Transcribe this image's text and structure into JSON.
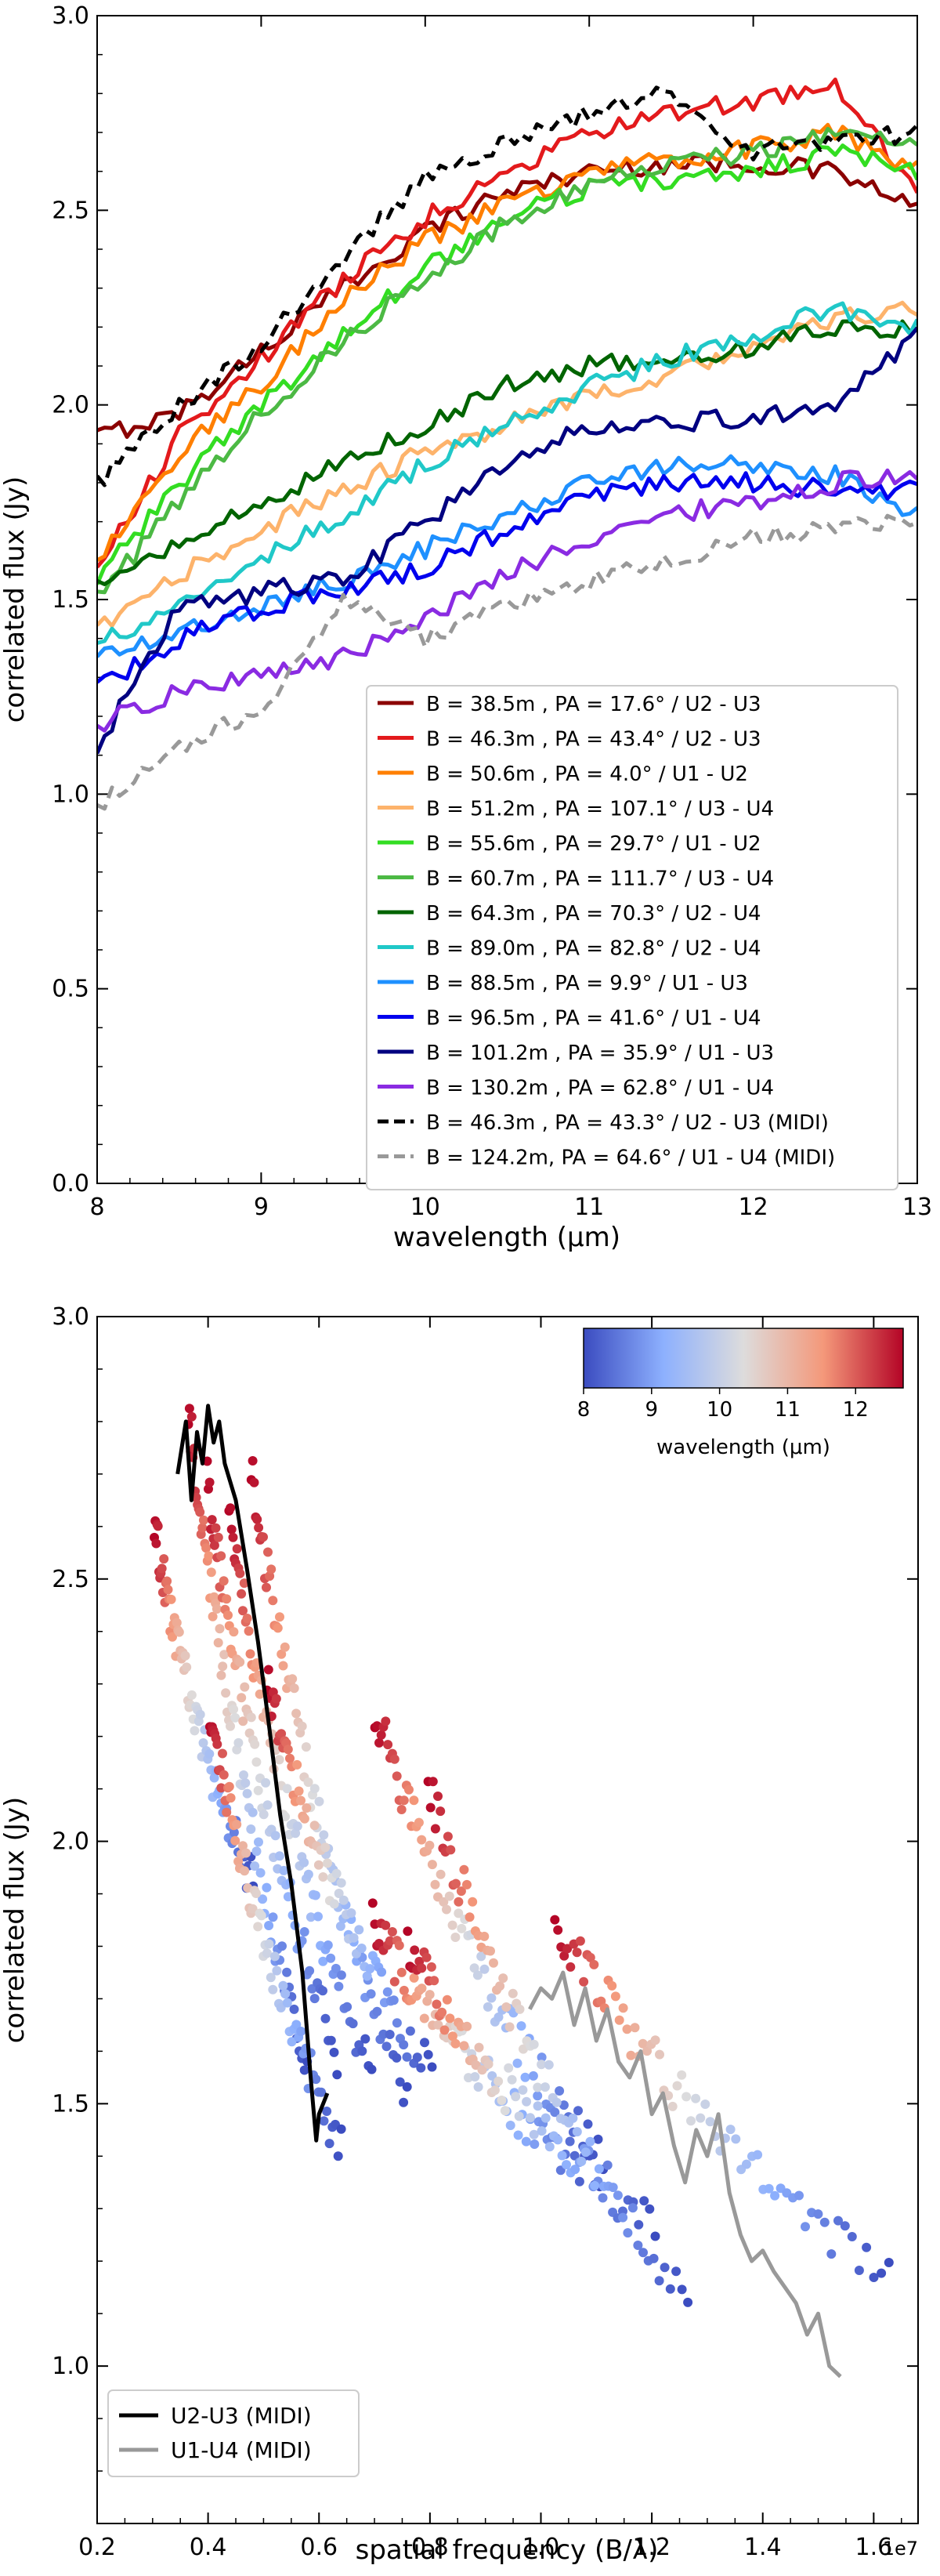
{
  "chart_data": [
    {
      "type": "line",
      "xlabel": "wavelength (μm)",
      "ylabel": "correlated flux (Jy)",
      "xlim": [
        8,
        13
      ],
      "ylim": [
        0,
        3
      ],
      "xticks": [
        8,
        9,
        10,
        11,
        12,
        13
      ],
      "yticks": [
        0.0,
        0.5,
        1.0,
        1.5,
        2.0,
        2.5,
        3.0
      ],
      "x": [
        8.0,
        8.5,
        9.0,
        9.5,
        10.0,
        10.5,
        11.0,
        11.5,
        12.0,
        12.5,
        13.0
      ],
      "legend_position": "lower-right",
      "series": [
        {
          "name": "B = 38.5m , PA = 17.6° / U2 - U3",
          "color": "#8b0000",
          "dash": "solid",
          "values": [
            1.92,
            1.98,
            2.14,
            2.3,
            2.45,
            2.55,
            2.6,
            2.62,
            2.62,
            2.6,
            2.5
          ]
        },
        {
          "name": "B = 46.3m , PA = 43.4° / U2 - U3",
          "color": "#e31a1c",
          "dash": "solid",
          "values": [
            1.58,
            1.92,
            2.12,
            2.32,
            2.48,
            2.6,
            2.7,
            2.75,
            2.78,
            2.82,
            2.55
          ]
        },
        {
          "name": "B = 50.6m , PA = 4.0° / U1 - U2",
          "color": "#ff7f00",
          "dash": "solid",
          "values": [
            1.6,
            1.88,
            2.05,
            2.28,
            2.42,
            2.52,
            2.6,
            2.63,
            2.66,
            2.7,
            2.6
          ]
        },
        {
          "name": "B = 51.2m , PA = 107.1° / U3 - U4",
          "color": "#fdb36b",
          "dash": "solid",
          "values": [
            1.42,
            1.56,
            1.68,
            1.78,
            1.88,
            1.95,
            2.02,
            2.08,
            2.15,
            2.22,
            2.25
          ]
        },
        {
          "name": "B = 55.6m , PA = 29.7° / U1 - U2",
          "color": "#33dd22",
          "dash": "solid",
          "values": [
            1.55,
            1.8,
            2.0,
            2.18,
            2.35,
            2.48,
            2.56,
            2.58,
            2.6,
            2.65,
            2.6
          ]
        },
        {
          "name": "B = 60.7m , PA = 111.7° / U3 - U4",
          "color": "#4cb944",
          "dash": "solid",
          "values": [
            1.5,
            1.75,
            1.98,
            2.16,
            2.33,
            2.47,
            2.57,
            2.62,
            2.65,
            2.7,
            2.68
          ]
        },
        {
          "name": "B = 64.3m , PA = 70.3° / U2 - U4",
          "color": "#006400",
          "dash": "solid",
          "values": [
            1.55,
            1.65,
            1.75,
            1.85,
            1.95,
            2.05,
            2.1,
            2.12,
            2.15,
            2.2,
            2.2
          ]
        },
        {
          "name": "B = 89.0m , PA = 82.8° / U2 - U4",
          "color": "#20c8c8",
          "dash": "solid",
          "values": [
            1.38,
            1.5,
            1.6,
            1.72,
            1.85,
            1.95,
            2.05,
            2.12,
            2.18,
            2.25,
            2.2
          ]
        },
        {
          "name": "B = 88.5m , PA = 9.9° / U1 - U3",
          "color": "#1e90ff",
          "dash": "solid",
          "values": [
            1.35,
            1.42,
            1.48,
            1.55,
            1.63,
            1.72,
            1.8,
            1.85,
            1.85,
            1.82,
            1.72
          ]
        },
        {
          "name": "B = 96.5m , PA = 41.6° / U1 - U4",
          "color": "#0000ee",
          "dash": "solid",
          "values": [
            1.27,
            1.4,
            1.48,
            1.52,
            1.58,
            1.68,
            1.76,
            1.8,
            1.8,
            1.78,
            1.78
          ]
        },
        {
          "name": "B = 101.2m , PA = 35.9° / U1 - U3",
          "color": "#000080",
          "dash": "solid",
          "values": [
            1.12,
            1.48,
            1.52,
            1.55,
            1.7,
            1.85,
            1.95,
            1.95,
            1.97,
            2.0,
            2.18
          ]
        },
        {
          "name": "B = 130.2m , PA = 62.8° / U1 - U4",
          "color": "#8a2be2",
          "dash": "solid",
          "values": [
            1.18,
            1.26,
            1.3,
            1.35,
            1.45,
            1.57,
            1.65,
            1.72,
            1.75,
            1.8,
            1.83
          ]
        },
        {
          "name": "B = 46.3m , PA = 43.3° / U2 - U3 (MIDI)",
          "color": "#000000",
          "dash": "dashed",
          "values": [
            1.8,
            2.0,
            2.15,
            2.38,
            2.58,
            2.68,
            2.75,
            2.8,
            2.65,
            2.68,
            2.7
          ]
        },
        {
          "name": "B = 124.2m, PA = 64.6° / U1 - U4 (MIDI)",
          "color": "#999999",
          "dash": "dashed",
          "values": [
            0.97,
            1.12,
            1.22,
            1.5,
            1.4,
            1.48,
            1.55,
            1.6,
            1.66,
            1.68,
            1.7
          ]
        }
      ]
    },
    {
      "type": "scatter",
      "xlabel": "spatial frequency (B/λ)",
      "ylabel": "correlated flux (Jy)",
      "x_offset_label": "1e7",
      "xlim": [
        0.2,
        1.68
      ],
      "ylim": [
        0.7,
        3.0
      ],
      "xticks": [
        0.2,
        0.4,
        0.6,
        0.8,
        1.0,
        1.2,
        1.4,
        1.6
      ],
      "yticks": [
        1.0,
        1.5,
        2.0,
        2.5,
        3.0
      ],
      "colorbar": {
        "label": "wavelength (μm)",
        "range": [
          8,
          12.7
        ],
        "ticks": [
          8,
          9,
          10,
          11,
          12
        ],
        "position": "top-right"
      },
      "colormap": [
        "#3b4cc0",
        "#8db0fe",
        "#dddcdc",
        "#f4987a",
        "#b40426"
      ],
      "legend_position": "bottom-left",
      "midi_lines": [
        {
          "name": "U2-U3 (MIDI)",
          "color": "#000000",
          "x": [
            0.345,
            0.36,
            0.37,
            0.38,
            0.39,
            0.4,
            0.41,
            0.42,
            0.43,
            0.45,
            0.47,
            0.49,
            0.51,
            0.53,
            0.55,
            0.57,
            0.585,
            0.595,
            0.6,
            0.615
          ],
          "y": [
            2.7,
            2.8,
            2.65,
            2.78,
            2.72,
            2.83,
            2.76,
            2.8,
            2.72,
            2.65,
            2.52,
            2.38,
            2.22,
            2.05,
            1.92,
            1.75,
            1.55,
            1.43,
            1.48,
            1.52
          ]
        },
        {
          "name": "U1-U4 (MIDI)",
          "color": "#999999",
          "x": [
            0.98,
            1.0,
            1.02,
            1.04,
            1.06,
            1.08,
            1.1,
            1.12,
            1.14,
            1.16,
            1.18,
            1.2,
            1.22,
            1.24,
            1.26,
            1.28,
            1.3,
            1.32,
            1.34,
            1.36,
            1.38,
            1.4,
            1.42,
            1.44,
            1.46,
            1.48,
            1.5,
            1.52,
            1.54
          ],
          "y": [
            1.68,
            1.72,
            1.7,
            1.75,
            1.65,
            1.72,
            1.62,
            1.68,
            1.58,
            1.55,
            1.6,
            1.48,
            1.52,
            1.42,
            1.35,
            1.45,
            1.4,
            1.48,
            1.33,
            1.25,
            1.2,
            1.22,
            1.18,
            1.15,
            1.12,
            1.06,
            1.1,
            1.0,
            0.98
          ]
        }
      ],
      "baseline_tracks": [
        {
          "baseline_m": 38.5,
          "flux_start": 1.92,
          "flux_end": 2.6
        },
        {
          "baseline_m": 46.3,
          "flux_start": 1.58,
          "flux_end": 2.82
        },
        {
          "baseline_m": 50.6,
          "flux_start": 1.6,
          "flux_end": 2.68
        },
        {
          "baseline_m": 51.2,
          "flux_start": 1.42,
          "flux_end": 2.25
        },
        {
          "baseline_m": 55.6,
          "flux_start": 1.55,
          "flux_end": 2.62
        },
        {
          "baseline_m": 60.7,
          "flux_start": 1.5,
          "flux_end": 2.7
        },
        {
          "baseline_m": 64.3,
          "flux_start": 1.55,
          "flux_end": 2.3
        },
        {
          "baseline_m": 89.0,
          "flux_start": 1.38,
          "flux_end": 2.25
        },
        {
          "baseline_m": 88.5,
          "flux_start": 1.35,
          "flux_end": 1.85
        },
        {
          "baseline_m": 96.5,
          "flux_start": 1.27,
          "flux_end": 1.8
        },
        {
          "baseline_m": 101.2,
          "flux_start": 1.12,
          "flux_end": 2.1
        },
        {
          "baseline_m": 130.2,
          "flux_start": 1.18,
          "flux_end": 1.85
        }
      ]
    }
  ]
}
